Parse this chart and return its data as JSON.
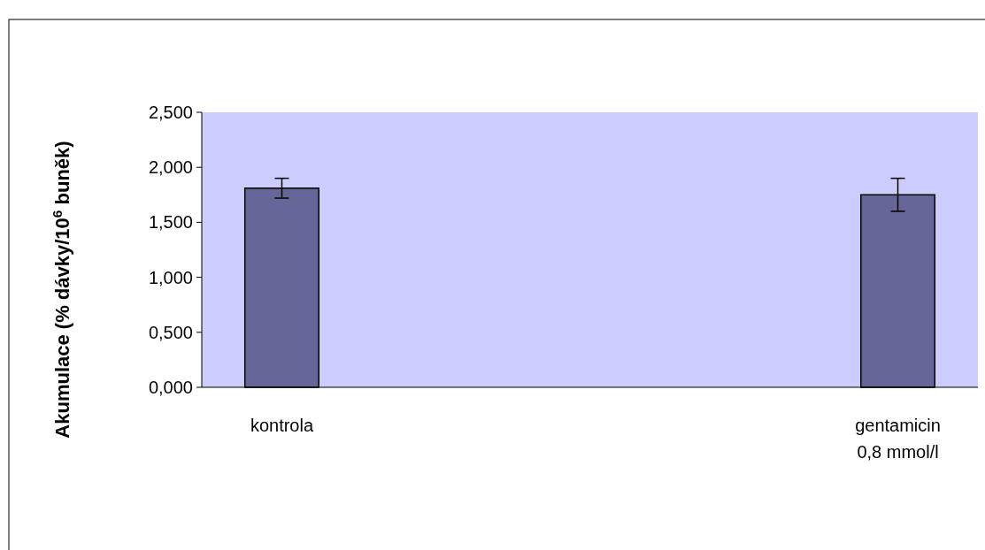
{
  "chart_data": {
    "type": "bar",
    "ylabel": "Akumulace (% dávky/10$^{6}$ buněk)",
    "categories": [
      "kontrola",
      "gentamicin\n0,8 mmol/l"
    ],
    "values": [
      1.81,
      1.75
    ],
    "errors": [
      0.09,
      0.15
    ],
    "color": "#666699",
    "ylim": [
      0,
      2.5
    ],
    "yticks": [
      {
        "value": 0,
        "label": "0,000"
      },
      {
        "value": 0.5,
        "label": "0,500"
      },
      {
        "value": 1,
        "label": "1,000"
      },
      {
        "value": 1.5,
        "label": "1,500"
      },
      {
        "value": 2,
        "label": "2,000"
      },
      {
        "value": 2.5,
        "label": "2,500"
      }
    ]
  }
}
